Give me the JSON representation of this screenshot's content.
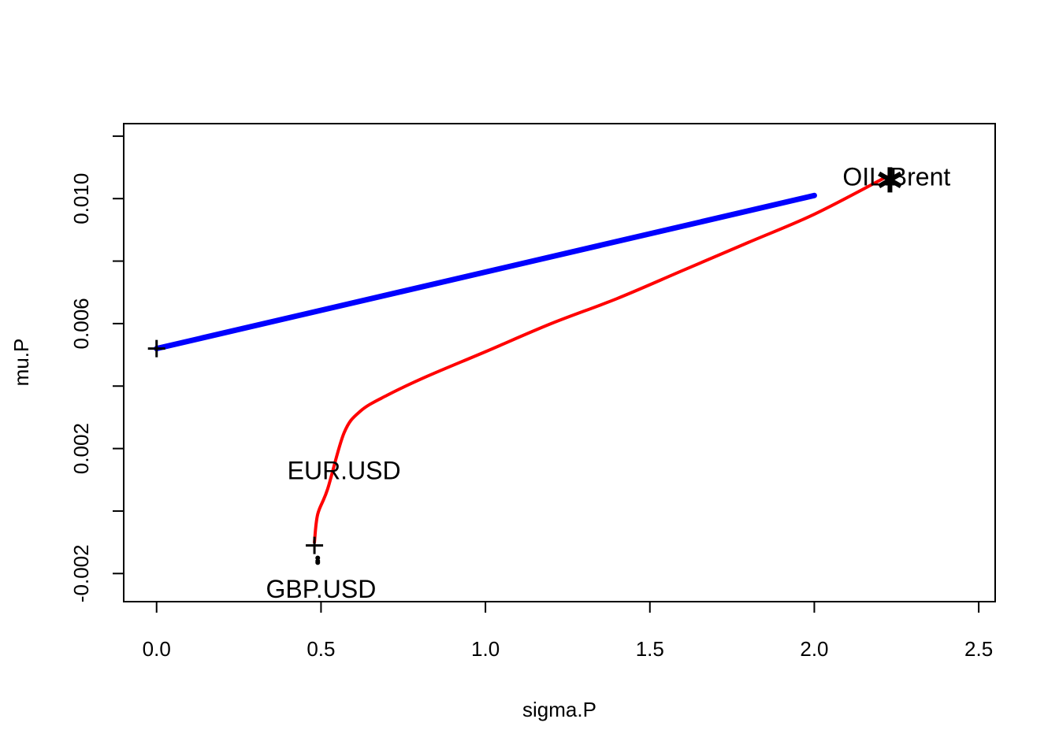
{
  "chart_data": {
    "type": "line",
    "xlabel": "sigma.P",
    "ylabel": "mu.P",
    "xlim": [
      -0.1,
      2.55
    ],
    "ylim": [
      -0.0029,
      0.0124
    ],
    "x_ticks": [
      0.0,
      0.5,
      1.0,
      1.5,
      2.0,
      2.5
    ],
    "x_tick_labels": [
      "0.0",
      "0.5",
      "1.0",
      "1.5",
      "2.0",
      "2.5"
    ],
    "y_ticks": [
      -0.002,
      0.0,
      0.002,
      0.004,
      0.006,
      0.008,
      0.01,
      0.012
    ],
    "y_tick_labels": [
      "-0.002",
      "",
      "0.002",
      "",
      "0.006",
      "",
      "0.010",
      ""
    ],
    "grid": false,
    "legend": "none",
    "series": [
      {
        "kind": "line",
        "color": "#0000ff",
        "points": [
          [
            0.0,
            0.0052
          ],
          [
            2.0,
            0.0101
          ]
        ]
      },
      {
        "kind": "curve",
        "color": "#ff0000",
        "points": [
          [
            0.48,
            -0.001
          ],
          [
            0.49,
            -0.0001
          ],
          [
            0.52,
            0.0007
          ],
          [
            0.57,
            0.0025
          ],
          [
            0.62,
            0.0032
          ],
          [
            0.7,
            0.0037
          ],
          [
            0.82,
            0.0043
          ],
          [
            1.0,
            0.0051
          ],
          [
            1.2,
            0.006
          ],
          [
            1.4,
            0.0068
          ],
          [
            1.6,
            0.0077
          ],
          [
            1.8,
            0.0086
          ],
          [
            2.0,
            0.0095
          ],
          [
            2.22,
            0.0107
          ]
        ]
      }
    ],
    "markers": [
      {
        "symbol": "+",
        "x": 0.0,
        "y": 0.0052
      },
      {
        "symbol": "+",
        "x": 0.48,
        "y": -0.0011
      },
      {
        "symbol": "*",
        "x": 2.23,
        "y": 0.0106
      },
      {
        "symbol": "dot",
        "x": 0.49,
        "y": -0.0015
      },
      {
        "symbol": "dot",
        "x": 0.49,
        "y": -0.0016
      },
      {
        "symbol": "dot",
        "x": 0.49,
        "y": -0.00165
      }
    ],
    "annotations": [
      {
        "text": "OIL.Brent",
        "x": 2.25,
        "y": 0.0107
      },
      {
        "text": "EUR.USD",
        "x": 0.57,
        "y": 0.0013
      },
      {
        "text": "GBP.USD",
        "x": 0.5,
        "y": -0.0025
      }
    ]
  }
}
